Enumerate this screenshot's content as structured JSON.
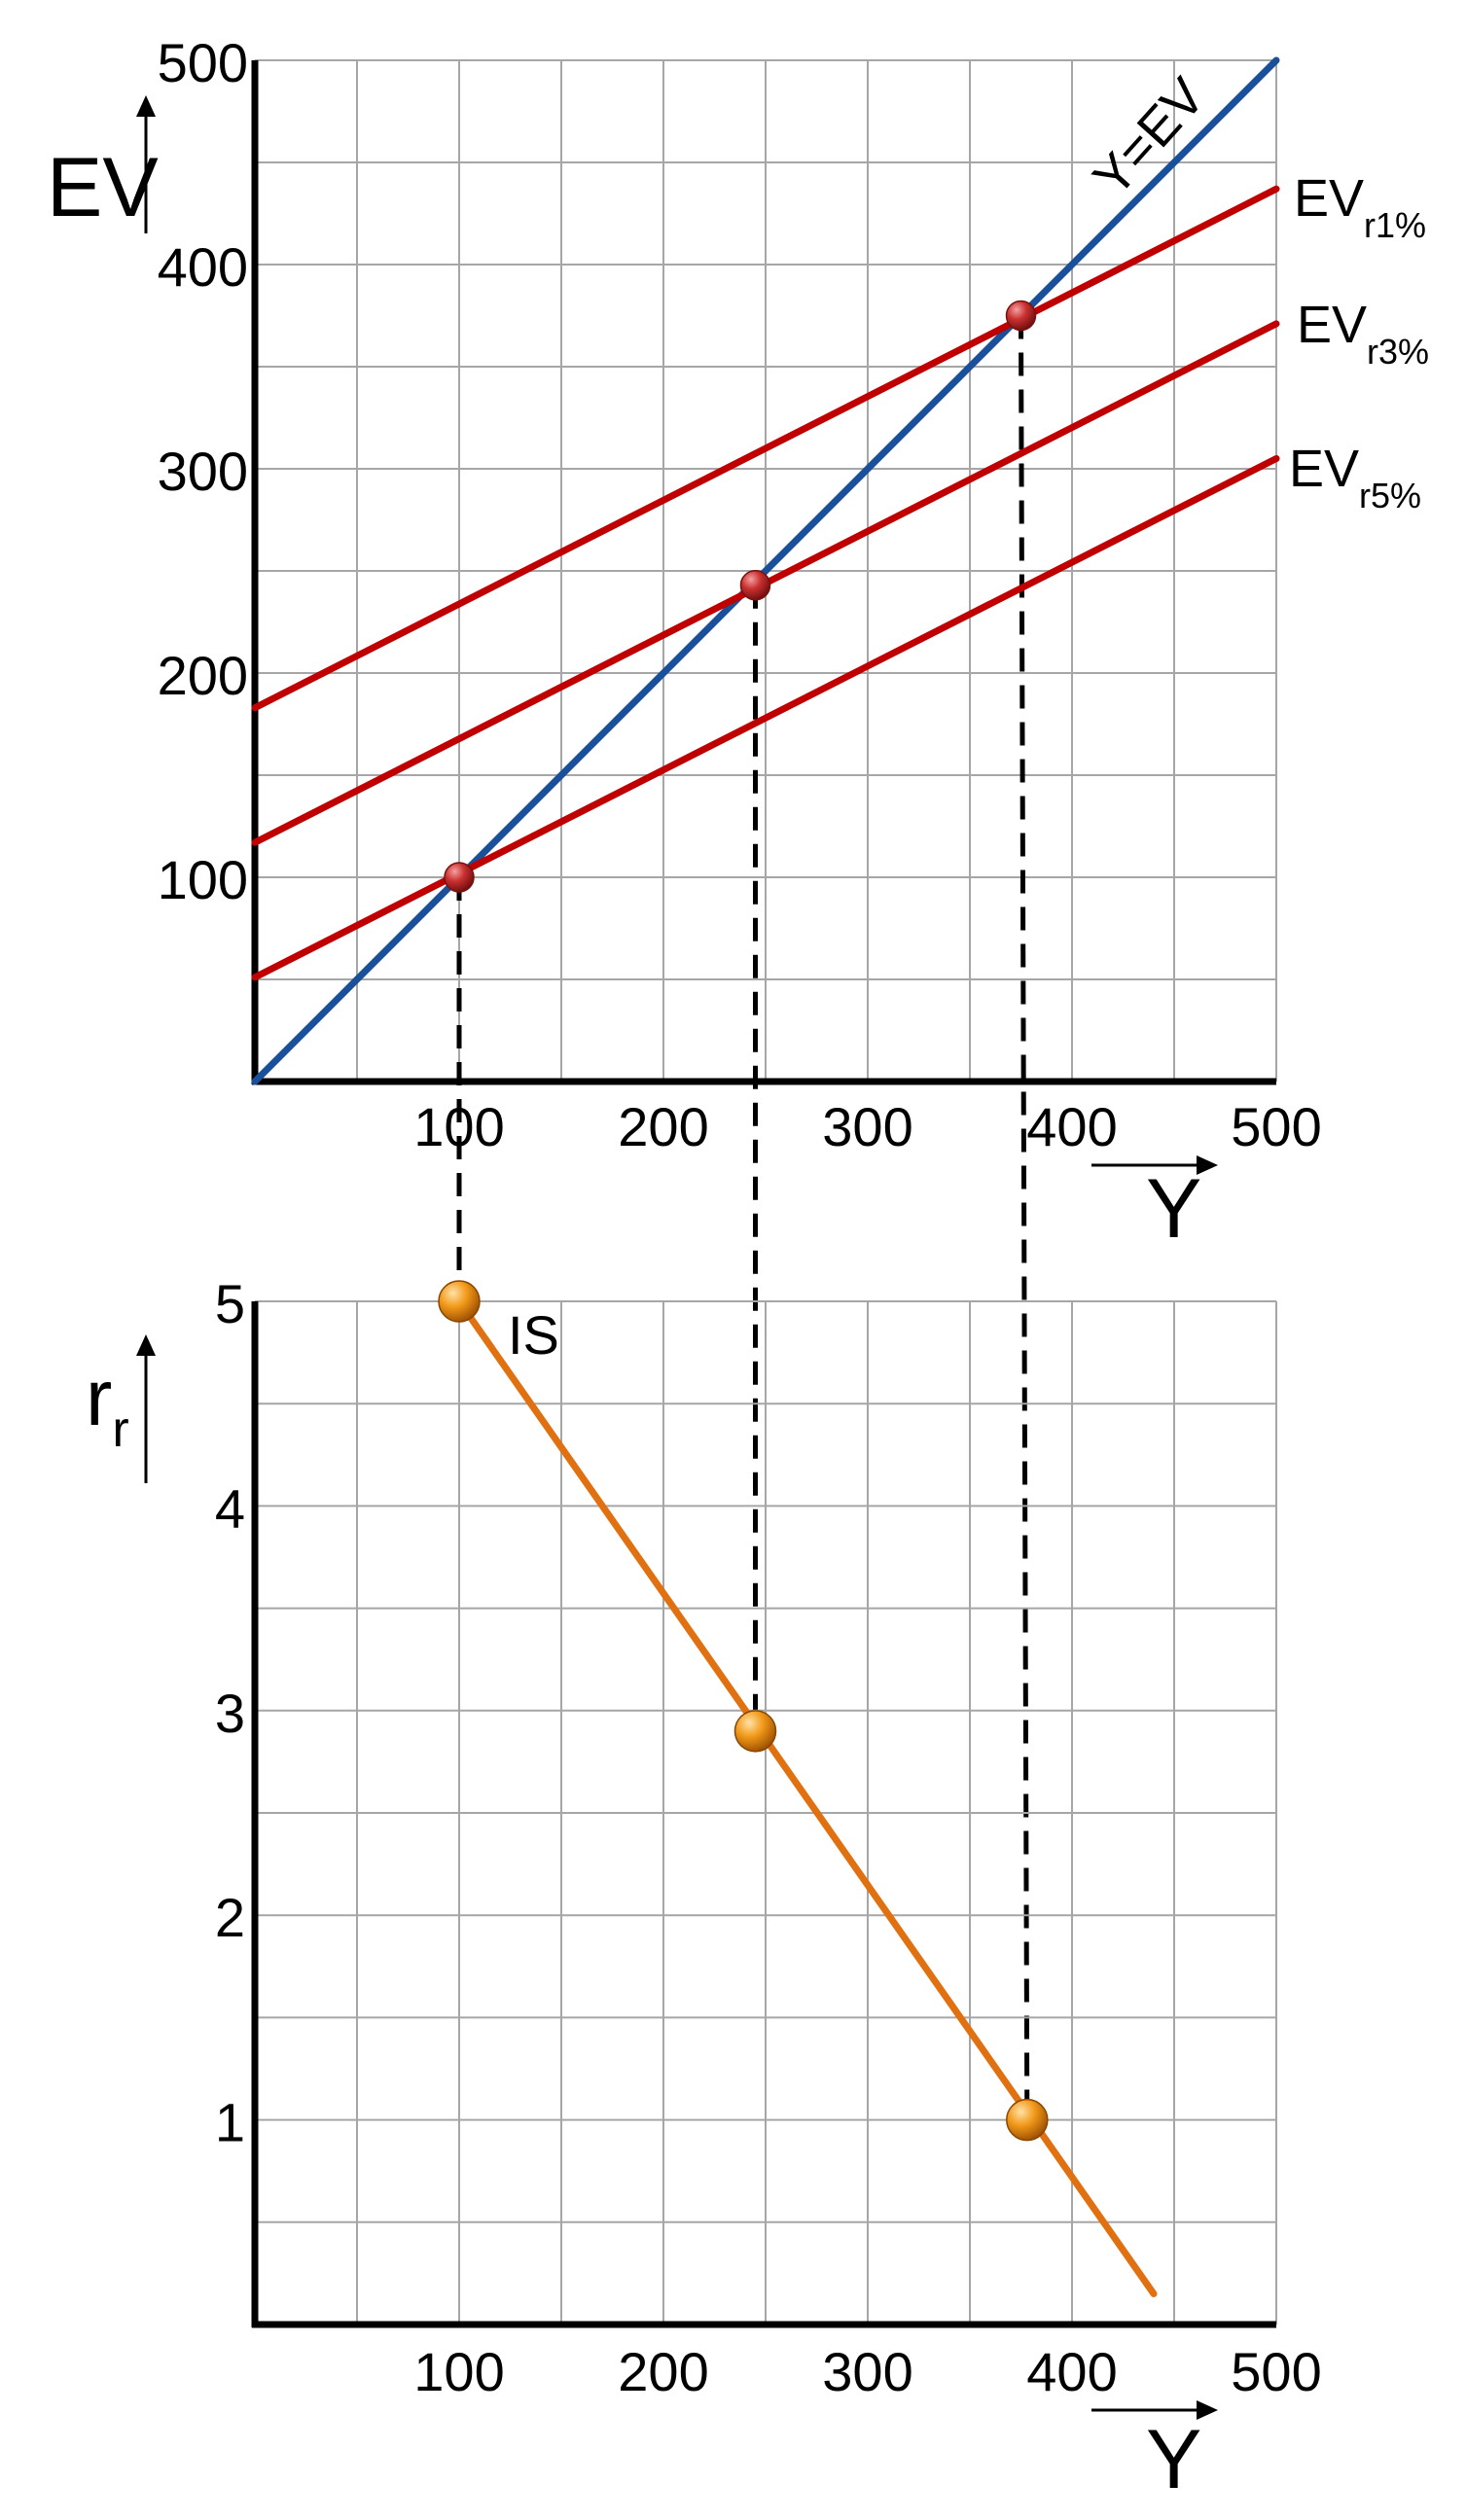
{
  "chart_data": [
    {
      "type": "line",
      "xlabel": "Y",
      "ylabel": "EV",
      "xlim": [
        0,
        500
      ],
      "ylim": [
        0,
        500
      ],
      "x_ticks": [
        100,
        200,
        300,
        400,
        500
      ],
      "y_ticks": [
        100,
        200,
        300,
        400,
        500
      ],
      "grid": true,
      "series": [
        {
          "name": "Y=EV",
          "x": [
            0,
            500
          ],
          "y": [
            0,
            500
          ],
          "color": "#1a4f9a"
        },
        {
          "name_main": "EV",
          "name_sub": "r1%",
          "x": [
            0,
            500
          ],
          "y": [
            183,
            437
          ],
          "color": "#c00000"
        },
        {
          "name_main": "EV",
          "name_sub": "r3%",
          "x": [
            0,
            500
          ],
          "y": [
            117,
            371
          ],
          "color": "#c00000"
        },
        {
          "name_main": "EV",
          "name_sub": "r5%",
          "x": [
            0,
            500
          ],
          "y": [
            51,
            305
          ],
          "color": "#c00000"
        }
      ],
      "equilibrium_points": [
        {
          "x": 100,
          "y": 100
        },
        {
          "x": 245,
          "y": 243
        },
        {
          "x": 375,
          "y": 375
        }
      ]
    },
    {
      "type": "line",
      "xlabel": "Y",
      "ylabel_main": "r",
      "ylabel_sub": "r",
      "xlim": [
        0,
        500
      ],
      "ylim": [
        0,
        5
      ],
      "x_ticks": [
        100,
        200,
        300,
        400,
        500
      ],
      "y_ticks": [
        1,
        2,
        3,
        4,
        5
      ],
      "grid": true,
      "series": [
        {
          "name": "IS",
          "x": [
            100,
            440
          ],
          "y": [
            5,
            0.15
          ],
          "color": "#e07010"
        }
      ],
      "points": [
        {
          "x": 100,
          "y": 5
        },
        {
          "x": 245,
          "y": 2.9
        },
        {
          "x": 378,
          "y": 1
        }
      ]
    }
  ]
}
